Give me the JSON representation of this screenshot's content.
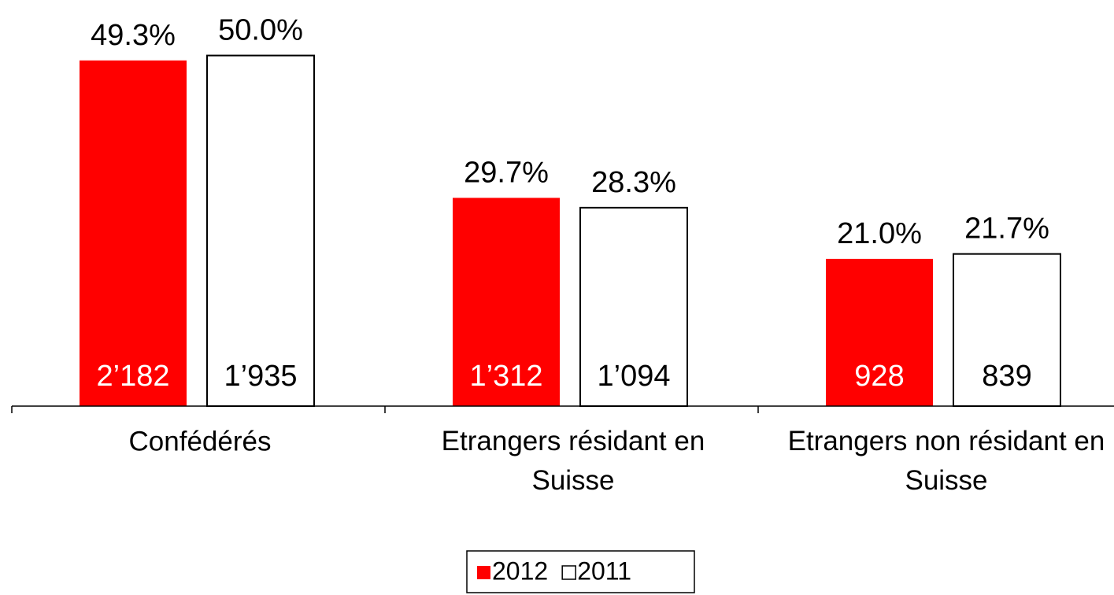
{
  "chart_data": {
    "type": "bar",
    "categories": [
      "Confédérés",
      "Etrangers résidant en Suisse",
      "Etrangers non résidant en Suisse"
    ],
    "series": [
      {
        "name": "2012",
        "color": "#ff0000",
        "values": [
          49.3,
          29.7,
          21.0
        ],
        "value_labels": [
          "49.3%",
          "29.7%",
          "21.0%"
        ],
        "counts": [
          2182,
          1312,
          928
        ],
        "count_labels": [
          "2’182",
          "1’312",
          "928"
        ]
      },
      {
        "name": "2011",
        "color": "#ffffff",
        "values": [
          50.0,
          28.3,
          21.7
        ],
        "value_labels": [
          "50.0%",
          "28.3%",
          "21.7%"
        ],
        "counts": [
          1935,
          1094,
          839
        ],
        "count_labels": [
          "1’935",
          "1’094",
          "839"
        ]
      }
    ],
    "ylim": [
      0,
      55
    ],
    "legend": "bottom"
  }
}
